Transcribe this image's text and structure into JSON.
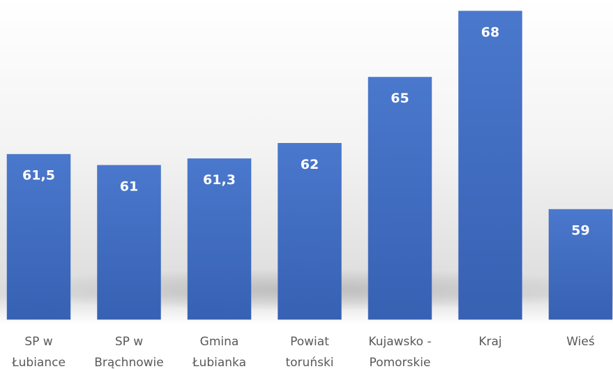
{
  "chart_data": {
    "type": "bar",
    "categories": [
      "SP w\nŁubiance",
      "SP  w\nBrąchnowie",
      "Gmina\nŁubianka",
      "Powiat\ntoruński",
      "Kujawsko -\nPomorskie",
      "Kraj",
      "Wieś"
    ],
    "values": [
      61.5,
      61,
      61.3,
      62,
      65,
      68,
      59
    ],
    "value_labels": [
      "61,5",
      "61",
      "61,3",
      "62",
      "65",
      "68",
      "59"
    ],
    "color": "#4472c4",
    "ylim": [
      54,
      68.5
    ]
  }
}
